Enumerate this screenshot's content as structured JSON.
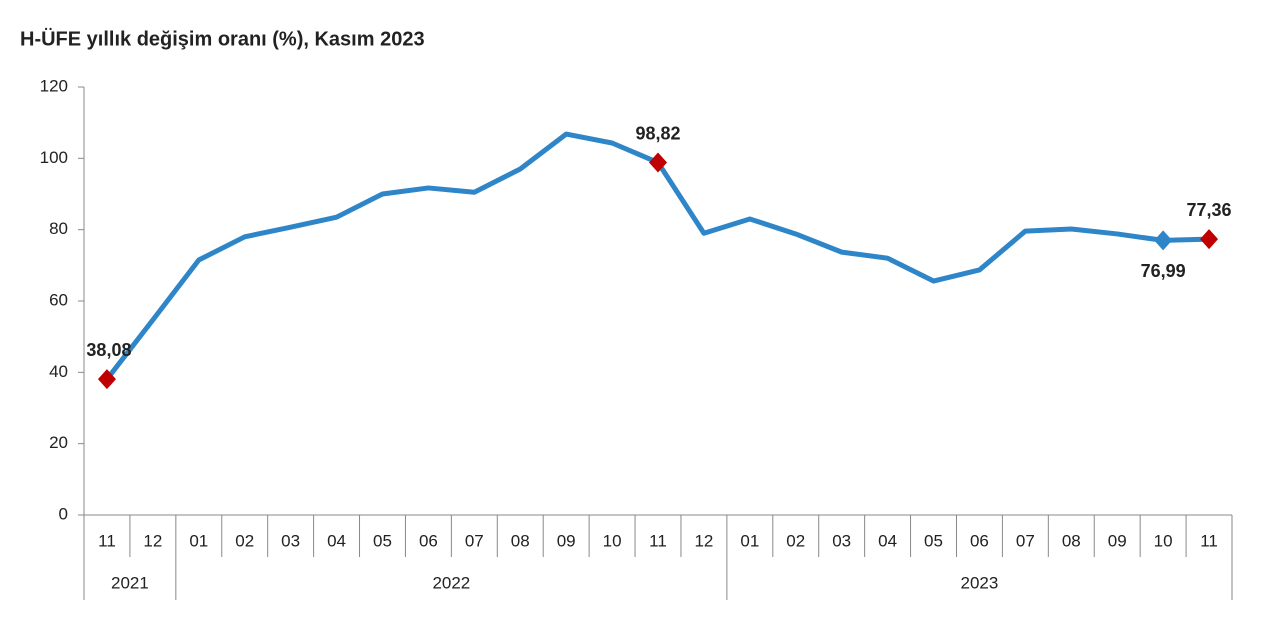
{
  "chart_data": {
    "type": "line",
    "title": "H-ÜFE yıllık değişim oranı (%), Kasım 2023",
    "groups": [
      {
        "label": "2021",
        "categories": [
          "11",
          "12"
        ]
      },
      {
        "label": "2022",
        "categories": [
          "01",
          "02",
          "03",
          "04",
          "05",
          "06",
          "07",
          "08",
          "09",
          "10",
          "11",
          "12"
        ]
      },
      {
        "label": "2023",
        "categories": [
          "01",
          "02",
          "03",
          "04",
          "05",
          "06",
          "07",
          "08",
          "09",
          "10",
          "11"
        ]
      }
    ],
    "series": [
      {
        "color": "#2e86c8",
        "values": [
          38.08,
          54.7,
          71.5,
          78,
          80.7,
          83.5,
          90,
          91.7,
          90.5,
          97,
          106.8,
          104.3,
          98.82,
          79,
          83,
          78.8,
          73.7,
          72,
          65.6,
          68.7,
          79.6,
          80.2,
          78.8,
          76.99,
          77.36
        ],
        "value_labels": [
          "38,08",
          null,
          null,
          null,
          null,
          null,
          null,
          null,
          null,
          null,
          null,
          null,
          "98,82",
          null,
          null,
          null,
          null,
          null,
          null,
          null,
          null,
          null,
          null,
          "76,99",
          "77,36"
        ],
        "marker_colors": [
          "#c00000",
          null,
          null,
          null,
          null,
          null,
          null,
          null,
          null,
          null,
          null,
          null,
          "#c00000",
          null,
          null,
          null,
          null,
          null,
          null,
          null,
          null,
          null,
          null,
          "#2e86c8",
          "#c00000"
        ]
      }
    ],
    "ylim": [
      0,
      120
    ],
    "yticks": [
      0,
      20,
      40,
      60,
      80,
      100,
      120
    ]
  }
}
